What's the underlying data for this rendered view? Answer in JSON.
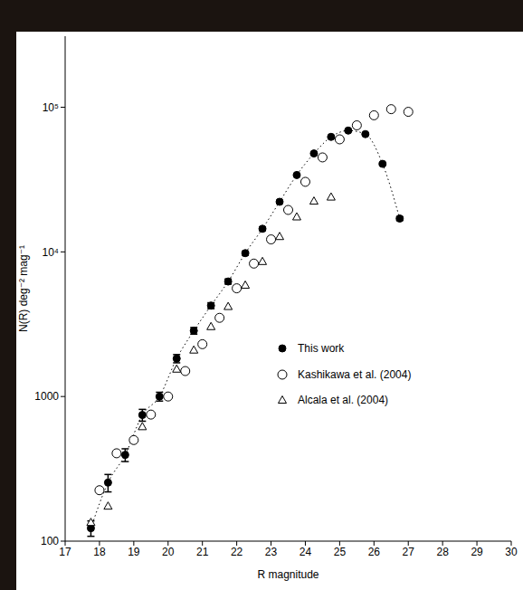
{
  "chart_data": {
    "type": "scatter",
    "x_label": "R magnitude",
    "y_label": "N(R) deg⁻² mag⁻¹",
    "xlim": [
      17,
      30
    ],
    "xticks": [
      17,
      18,
      19,
      20,
      21,
      22,
      23,
      24,
      25,
      26,
      27,
      28,
      29,
      30
    ],
    "ylim": [
      100,
      310000
    ],
    "yticks": [
      100,
      1000,
      {
        "value": 10000,
        "label": "10⁴"
      },
      {
        "value": 100000,
        "label": "10⁵"
      }
    ],
    "log": "y",
    "legend": "lower right",
    "series": [
      {
        "name": "This work",
        "color": "#000000",
        "marker": "filled_circle",
        "line_style": "dotted",
        "x": [
          17.75,
          18.25,
          18.75,
          19.25,
          19.75,
          20.25,
          20.75,
          21.25,
          21.75,
          22.25,
          22.75,
          23.25,
          23.75,
          24.25,
          24.75,
          25.25,
          25.75,
          26.25,
          26.75
        ],
        "values": [
          123,
          254,
          395,
          745,
          1000,
          1830,
          2850,
          4250,
          6240,
          9800,
          14450,
          22200,
          34000,
          47900,
          62400,
          69000,
          65200,
          40600,
          17000
        ],
        "errors": [
          15,
          35,
          40,
          70,
          70,
          120,
          150,
          200,
          250,
          300,
          400,
          500,
          700,
          800,
          1000,
          1000,
          1000,
          800,
          500
        ]
      },
      {
        "name": "Kashikawa et al. (2004)",
        "color": "#000000",
        "marker": "open_circle",
        "x": [
          18.0,
          18.5,
          19.0,
          19.5,
          20.0,
          20.5,
          21.0,
          21.5,
          22.0,
          22.5,
          23.0,
          23.5,
          24.0,
          24.5,
          25.0,
          25.5,
          26.0,
          26.5,
          27.0
        ],
        "values": [
          225,
          405,
          500,
          750,
          1000,
          1500,
          2300,
          3500,
          5600,
          8300,
          12200,
          19500,
          30500,
          45000,
          60000,
          75000,
          88000,
          97000,
          93000
        ]
      },
      {
        "name": "Alcala et al. (2004)",
        "color": "#000000",
        "marker": "open_triangle",
        "x": [
          17.75,
          18.25,
          19.25,
          20.25,
          20.75,
          21.25,
          21.75,
          22.25,
          22.75,
          23.25,
          23.75,
          24.25,
          24.75
        ],
        "values": [
          135,
          175,
          620,
          1550,
          2100,
          3050,
          4200,
          5900,
          8600,
          12800,
          17500,
          22500,
          24000
        ]
      }
    ]
  }
}
